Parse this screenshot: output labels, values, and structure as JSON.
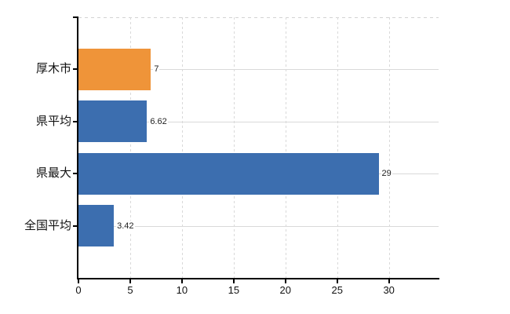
{
  "chart_data": {
    "type": "bar",
    "orientation": "horizontal",
    "title": "",
    "xlabel": "",
    "ylabel": "",
    "categories": [
      "厚木市",
      "県平均",
      "県最大",
      "全国平均"
    ],
    "values": [
      7,
      6.62,
      29,
      3.42
    ],
    "value_labels": [
      "7",
      "6.62",
      "29",
      "3.42"
    ],
    "bar_colors": [
      "#ef9439",
      "#3c6eaf",
      "#3c6eaf",
      "#3c6eaf"
    ],
    "x_ticks": [
      0,
      5,
      10,
      15,
      20,
      25,
      30
    ],
    "xlim": [
      0,
      34.8
    ],
    "grid": true,
    "legend": false
  },
  "colors": {
    "highlight_bar": "#ef9439",
    "default_bar": "#3c6eaf",
    "grid_line": "#d9d9d9",
    "axis_line": "#000000",
    "tick_text": "#111111",
    "value_text": "#222222",
    "background": "#ffffff"
  }
}
